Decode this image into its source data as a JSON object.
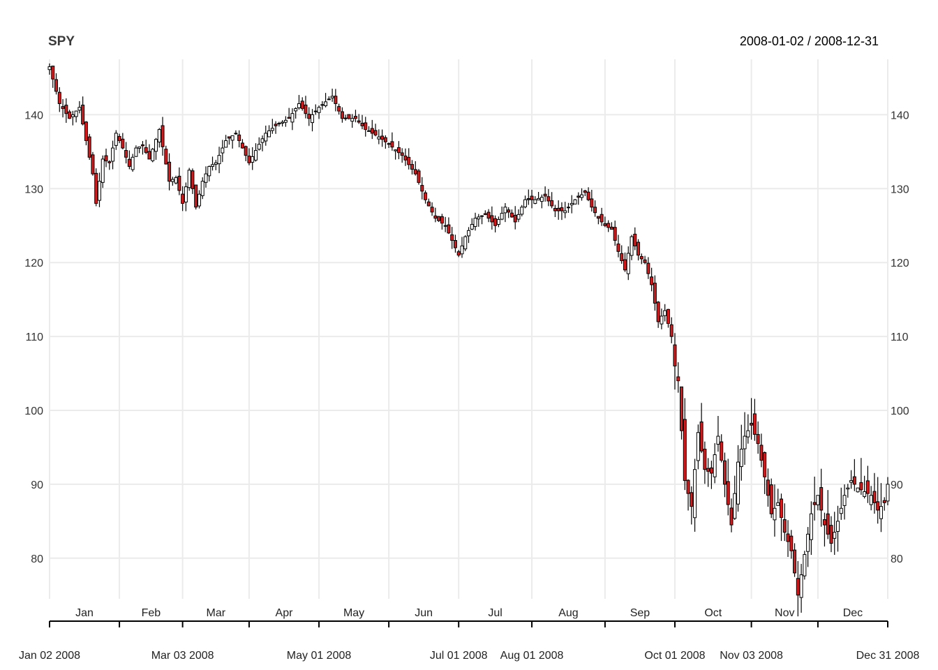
{
  "chart_data": {
    "type": "candlestick",
    "title": "SPY",
    "date_range": "2008-01-02 / 2008-12-31",
    "ylim": [
      74.5,
      147.5
    ],
    "y_ticks": [
      80,
      90,
      100,
      110,
      120,
      130,
      140
    ],
    "grid": true,
    "up_color": "#ffffff",
    "down_color": "#d7191c",
    "month_labels": [
      "Jan",
      "Feb",
      "Mar",
      "Apr",
      "May",
      "Jun",
      "Jul",
      "Aug",
      "Sep",
      "Oct",
      "Nov",
      "Dec"
    ],
    "month_start_index": [
      0,
      21,
      40,
      60,
      81,
      102,
      123,
      145,
      167,
      188,
      211,
      231
    ],
    "major_labels": [
      "Jan 02 2008",
      "Mar 03 2008",
      "May 01 2008",
      "Jul 01 2008",
      "Aug 01 2008",
      "Oct 01 2008",
      "Nov 03 2008",
      "Dec 31 2008"
    ],
    "major_index": [
      0,
      40,
      81,
      123,
      145,
      188,
      211,
      252
    ],
    "n_days": 253,
    "anchors": [
      [
        0,
        146.5
      ],
      [
        3,
        141.5
      ],
      [
        6,
        139.5
      ],
      [
        9,
        141.0
      ],
      [
        11,
        136.5
      ],
      [
        13,
        132.0
      ],
      [
        14,
        128.0
      ],
      [
        16,
        134.0
      ],
      [
        18,
        133.5
      ],
      [
        20,
        137.5
      ],
      [
        22,
        135.5
      ],
      [
        24,
        133.0
      ],
      [
        26,
        135.5
      ],
      [
        28,
        135.8
      ],
      [
        30,
        134.0
      ],
      [
        33,
        138.0
      ],
      [
        36,
        131.0
      ],
      [
        38,
        131.5
      ],
      [
        40,
        128.0
      ],
      [
        42,
        132.5
      ],
      [
        44,
        127.5
      ],
      [
        46,
        131.0
      ],
      [
        48,
        133.0
      ],
      [
        50,
        133.5
      ],
      [
        53,
        136.5
      ],
      [
        56,
        137.5
      ],
      [
        60,
        133.5
      ],
      [
        63,
        136.0
      ],
      [
        65,
        137.5
      ],
      [
        68,
        138.5
      ],
      [
        72,
        139.5
      ],
      [
        75,
        141.5
      ],
      [
        78,
        139.5
      ],
      [
        81,
        141.0
      ],
      [
        85,
        142.5
      ],
      [
        88,
        139.5
      ],
      [
        92,
        139.5
      ],
      [
        95,
        138.0
      ],
      [
        99,
        137.0
      ],
      [
        102,
        136.0
      ],
      [
        106,
        134.5
      ],
      [
        110,
        132.0
      ],
      [
        113,
        128.5
      ],
      [
        116,
        126.0
      ],
      [
        119,
        125.0
      ],
      [
        121,
        123.0
      ],
      [
        123,
        121.0
      ],
      [
        125,
        123.5
      ],
      [
        128,
        126.0
      ],
      [
        131,
        126.5
      ],
      [
        134,
        125.0
      ],
      [
        137,
        127.5
      ],
      [
        140,
        125.5
      ],
      [
        143,
        128.5
      ],
      [
        146,
        128.5
      ],
      [
        149,
        129.0
      ],
      [
        152,
        127.0
      ],
      [
        155,
        127.0
      ],
      [
        158,
        128.5
      ],
      [
        161,
        129.5
      ],
      [
        163,
        127.5
      ],
      [
        165,
        126.0
      ],
      [
        167,
        125.0
      ],
      [
        169,
        124.5
      ],
      [
        171,
        121.5
      ],
      [
        173,
        119.0
      ],
      [
        175,
        123.5
      ],
      [
        177,
        121.0
      ],
      [
        179,
        120.0
      ],
      [
        181,
        117.0
      ],
      [
        183,
        112.0
      ],
      [
        185,
        113.5
      ],
      [
        187,
        110.0
      ],
      [
        188,
        106.0
      ],
      [
        189,
        104.0
      ],
      [
        191,
        90.5
      ],
      [
        193,
        87.0
      ],
      [
        195,
        97.0
      ],
      [
        197,
        92.0
      ],
      [
        199,
        91.5
      ],
      [
        201,
        96.5
      ],
      [
        203,
        90.0
      ],
      [
        205,
        84.5
      ],
      [
        207,
        93.0
      ],
      [
        209,
        96.5
      ],
      [
        211,
        98.0
      ],
      [
        213,
        95.5
      ],
      [
        215,
        91.0
      ],
      [
        217,
        86.0
      ],
      [
        219,
        87.5
      ],
      [
        221,
        83.5
      ],
      [
        223,
        81.0
      ],
      [
        225,
        75.0
      ],
      [
        227,
        80.5
      ],
      [
        229,
        86.0
      ],
      [
        231,
        88.5
      ],
      [
        233,
        84.5
      ],
      [
        235,
        82.0
      ],
      [
        237,
        85.0
      ],
      [
        239,
        88.5
      ],
      [
        241,
        90.5
      ],
      [
        243,
        89.5
      ],
      [
        245,
        89.0
      ],
      [
        247,
        88.5
      ],
      [
        249,
        86.5
      ],
      [
        251,
        87.5
      ],
      [
        252,
        90.0
      ]
    ]
  }
}
